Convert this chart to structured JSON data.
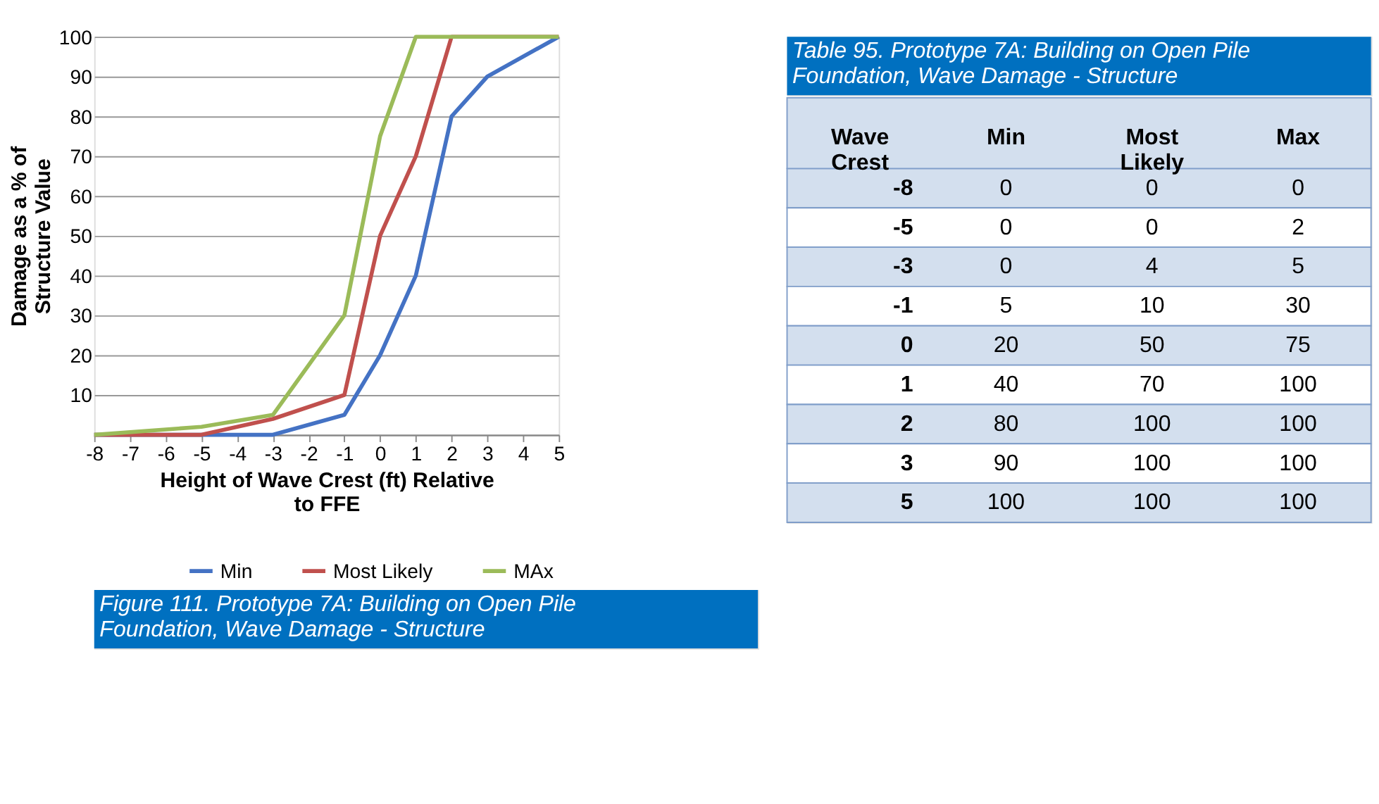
{
  "chart_data": [
    {
      "type": "line",
      "xlabel": "Height of Wave Crest (ft) Relative to FFE",
      "ylabel": "Damage as a % of Structure Value",
      "x": [
        -8,
        -5,
        -3,
        -1,
        0,
        1,
        2,
        3,
        5
      ],
      "series": [
        {
          "name": "Min",
          "color": "#4472c4",
          "values": [
            0,
            0,
            0,
            5,
            20,
            40,
            80,
            90,
            100
          ]
        },
        {
          "name": "Most Likely",
          "color": "#c0504d",
          "values": [
            0,
            0,
            4,
            10,
            50,
            70,
            100,
            100,
            100
          ]
        },
        {
          "name": "MAx",
          "color": "#9bbb59",
          "values": [
            0,
            2,
            5,
            30,
            75,
            100,
            100,
            100,
            100
          ]
        }
      ],
      "xlim": [
        -8,
        5
      ],
      "xticks": [
        -8,
        -7,
        -6,
        -5,
        -4,
        -3,
        -2,
        -1,
        0,
        1,
        2,
        3,
        4,
        5
      ],
      "ylim": [
        0,
        100
      ],
      "yticks": [
        {
          "value": 0,
          "label": null
        },
        10,
        20,
        30,
        40,
        50,
        60,
        70,
        80,
        90,
        100
      ],
      "grid": "y",
      "legend": "bottom",
      "line_style": "solid",
      "annotations": [
        "Figure 111. Prototype 7A: Building on Open Pile Foundation, Wave Damage - Structure"
      ]
    },
    {
      "type": "heatmap",
      "title": "Table 95. Prototype 7A: Building on Open Pile Foundation, Wave Damage - Structure",
      "ylabel": "Wave Crest",
      "categories": [
        "Min",
        "Most Likely",
        "Max"
      ],
      "y_categories": [
        "-8",
        "-5",
        "-3",
        "-1",
        "0",
        "1",
        "2",
        "3",
        "5"
      ],
      "cells": [
        [
          0,
          0,
          0
        ],
        [
          0,
          0,
          2
        ],
        [
          0,
          4,
          5
        ],
        [
          5,
          10,
          30
        ],
        [
          20,
          50,
          75
        ],
        [
          40,
          70,
          100
        ],
        [
          80,
          100,
          100
        ],
        [
          90,
          100,
          100
        ],
        [
          100,
          100,
          100
        ]
      ],
      "data_labels": true
    }
  ]
}
